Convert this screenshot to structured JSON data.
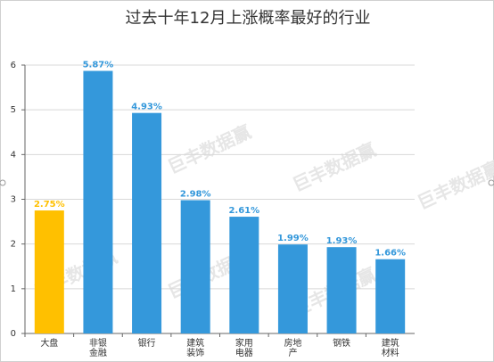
{
  "chart_data": {
    "type": "bar",
    "title": "过去十年12月上涨概率最好的行业",
    "categories": [
      "大盘",
      "非银金融",
      "银行",
      "建筑装饰",
      "家用电器",
      "房地产",
      "钢铁",
      "建筑材料"
    ],
    "values": [
      2.75,
      5.87,
      4.93,
      2.98,
      2.61,
      1.99,
      1.93,
      1.66
    ],
    "value_labels": [
      "2.75%",
      "5.87%",
      "4.93%",
      "2.98%",
      "2.61%",
      "1.99%",
      "1.93%",
      "1.66%"
    ],
    "colors": [
      "#ffc000",
      "#3498db",
      "#3498db",
      "#3498db",
      "#3498db",
      "#3498db",
      "#3498db",
      "#3498db"
    ],
    "label_colors": [
      "#ffc000",
      "#3498db",
      "#3498db",
      "#3498db",
      "#3498db",
      "#3498db",
      "#3498db",
      "#3498db"
    ],
    "ylim": [
      0,
      6
    ],
    "yticks": [
      0,
      1,
      2,
      3,
      4,
      5,
      6
    ],
    "grid": true,
    "watermark": "巨丰数据赢"
  }
}
